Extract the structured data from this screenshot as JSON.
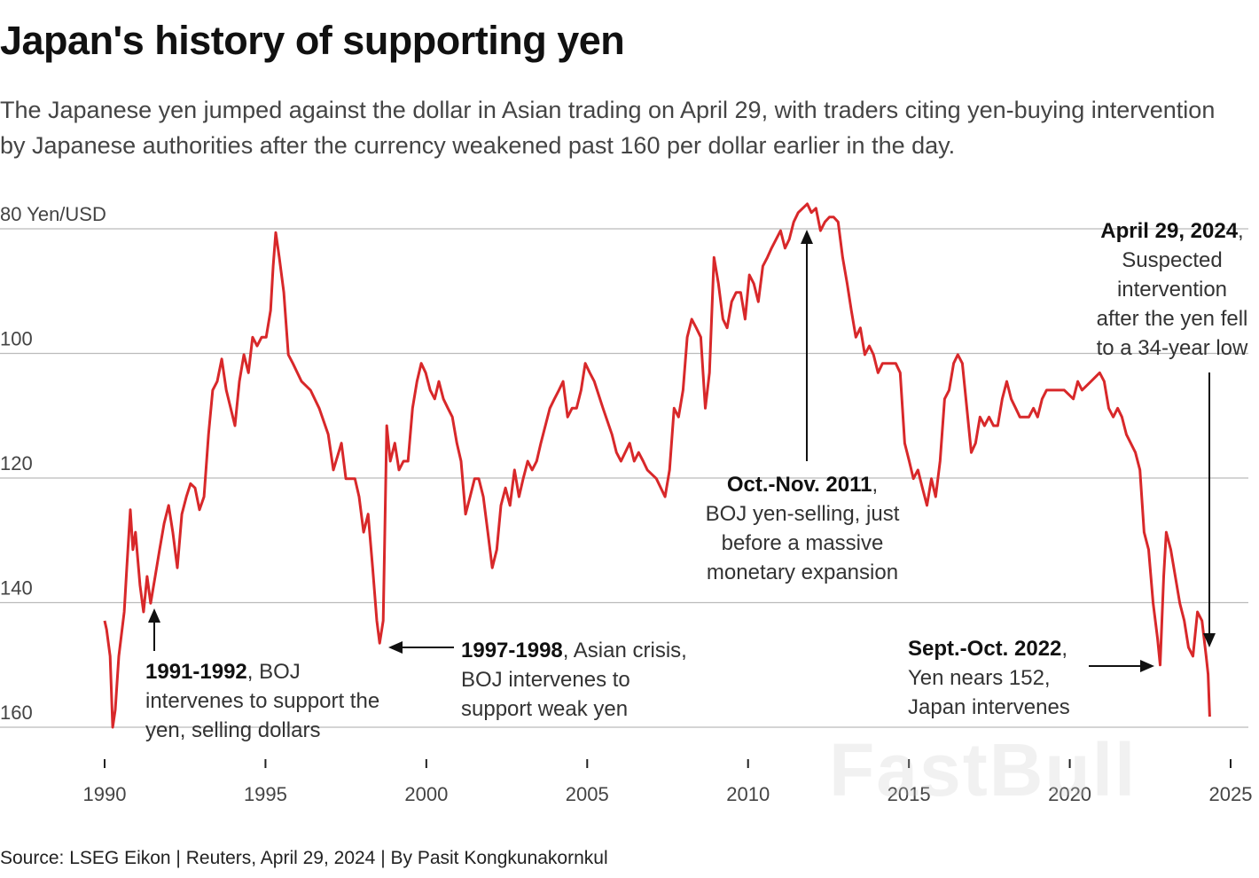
{
  "title": "Japan's history of supporting yen",
  "subtitle": "The Japanese yen jumped against the dollar in Asian trading on April 29, with traders citing yen-buying intervention by Japanese authorities after the currency weakened past 160 per dollar earlier in the day.",
  "source": "Source: LSEG Eikon | Reuters, April 29, 2024 | By Pasit Kongkunakornkul",
  "watermark": "FastBull",
  "colors": {
    "line": "#d8282a",
    "grid": "#bbbbbb",
    "annotation_arrow": "#111111"
  },
  "annotations": [
    {
      "bold": "1991-1992",
      "text": ", BOJ",
      "lines": [
        "intervenes to support the",
        "yen, selling dollars"
      ]
    },
    {
      "bold": "1997-1998",
      "text": ", Asian crisis,",
      "lines": [
        "BOJ intervenes to",
        "support weak yen"
      ]
    },
    {
      "bold": "Oct.-Nov. 2011",
      "text": ",",
      "lines": [
        "BOJ yen-selling, just",
        "before a massive",
        "monetary expansion"
      ]
    },
    {
      "bold": "Sept.-Oct. 2022",
      "text": ",",
      "lines": [
        "Yen nears 152,",
        "Japan intervenes"
      ]
    },
    {
      "bold": "April 29, 2024",
      "text": ",",
      "lines": [
        "Suspected",
        "intervention",
        "after the yen fell",
        "to a 34-year low"
      ]
    }
  ],
  "chart_data": {
    "type": "line",
    "title": "Japan's history of supporting yen",
    "ylabel": "Yen/USD",
    "y_unit_label": "80 Yen/USD",
    "y_inverted": true,
    "ylim": [
      80,
      160
    ],
    "xlim": [
      1990,
      2025
    ],
    "yticks": [
      80,
      100,
      120,
      140,
      160
    ],
    "ytick_labels": [
      "80 Yen/USD",
      "100",
      "120",
      "140",
      "160"
    ],
    "xticks": [
      1990,
      1995,
      2000,
      2005,
      2010,
      2015,
      2020,
      2025
    ],
    "xtick_labels": [
      "1990",
      "1995",
      "2000",
      "2005",
      "2010",
      "2015",
      "2020",
      "2025"
    ],
    "grid": "horizontal",
    "series": [
      {
        "x": [
          1990.0,
          1990.06,
          1990.17,
          1990.25,
          1990.33,
          1990.44,
          1990.61,
          1990.69,
          1990.8,
          1990.88,
          1990.96,
          1991.1,
          1991.21,
          1991.32,
          1991.43,
          1991.57,
          1991.71,
          1991.85,
          1991.99,
          1992.12,
          1992.26,
          1992.4,
          1992.54,
          1992.67,
          1992.81,
          1992.95,
          1993.09,
          1993.23,
          1993.36,
          1993.5,
          1993.64,
          1993.78,
          1993.92,
          1994.05,
          1994.19,
          1994.33,
          1994.47,
          1994.6,
          1994.74,
          1994.88,
          1995.02,
          1995.16,
          1995.24,
          1995.32,
          1995.43,
          1995.57,
          1995.71,
          1995.85,
          1996.12,
          1996.4,
          1996.67,
          1996.95,
          1997.11,
          1997.36,
          1997.5,
          1997.78,
          1997.91,
          1998.05,
          1998.19,
          1998.33,
          1998.46,
          1998.55,
          1998.66,
          1998.77,
          1998.88,
          1999.02,
          1999.15,
          1999.29,
          1999.43,
          1999.57,
          1999.71,
          1999.84,
          1999.98,
          2000.12,
          2000.26,
          2000.39,
          2000.53,
          2000.67,
          2000.81,
          2000.95,
          2001.08,
          2001.22,
          2001.36,
          2001.5,
          2001.63,
          2001.77,
          2001.91,
          2002.05,
          2002.19,
          2002.32,
          2002.46,
          2002.6,
          2002.74,
          2002.88,
          2003.01,
          2003.15,
          2003.29,
          2003.43,
          2003.56,
          2003.7,
          2003.84,
          2003.98,
          2004.12,
          2004.25,
          2004.39,
          2004.53,
          2004.67,
          2004.81,
          2004.94,
          2005.08,
          2005.22,
          2005.49,
          2005.77,
          2005.91,
          2006.05,
          2006.32,
          2006.46,
          2006.6,
          2006.74,
          2006.87,
          2007.15,
          2007.42,
          2007.56,
          2007.7,
          2007.84,
          2007.98,
          2008.11,
          2008.25,
          2008.39,
          2008.53,
          2008.67,
          2008.8,
          2008.94,
          2009.08,
          2009.22,
          2009.35,
          2009.49,
          2009.63,
          2009.77,
          2009.91,
          2010.04,
          2010.18,
          2010.32,
          2010.46,
          2010.6,
          2010.73,
          2010.87,
          2011.01,
          2011.15,
          2011.28,
          2011.42,
          2011.56,
          2011.7,
          2011.84,
          2011.97,
          2012.11,
          2012.25,
          2012.39,
          2012.53,
          2012.66,
          2012.8,
          2012.94,
          2013.08,
          2013.21,
          2013.35,
          2013.49,
          2013.63,
          2013.77,
          2013.9,
          2014.04,
          2014.18,
          2014.46,
          2014.59,
          2014.73,
          2014.87,
          2015.01,
          2015.14,
          2015.28,
          2015.42,
          2015.56,
          2015.7,
          2015.83,
          2015.97,
          2016.11,
          2016.25,
          2016.39,
          2016.52,
          2016.66,
          2016.8,
          2016.94,
          2017.07,
          2017.21,
          2017.35,
          2017.49,
          2017.63,
          2017.76,
          2017.9,
          2018.04,
          2018.18,
          2018.32,
          2018.45,
          2018.59,
          2018.73,
          2018.87,
          2019.0,
          2019.14,
          2019.28,
          2019.56,
          2019.83,
          2020.11,
          2020.25,
          2020.38,
          2020.66,
          2020.93,
          2021.07,
          2021.21,
          2021.35,
          2021.49,
          2021.62,
          2021.76,
          2022.04,
          2022.18,
          2022.31,
          2022.45,
          2022.59,
          2022.73,
          2022.81,
          2022.92,
          2023.0,
          2023.14,
          2023.28,
          2023.42,
          2023.56,
          2023.69,
          2023.83,
          2023.97,
          2024.11,
          2024.24,
          2024.3,
          2024.35
        ],
        "y": [
          142.9,
          144.3,
          148.6,
          160.0,
          157.2,
          148.6,
          141.5,
          134.4,
          125.1,
          131.5,
          128.7,
          137.2,
          141.5,
          135.8,
          140.1,
          135.8,
          131.5,
          127.3,
          124.4,
          128.7,
          134.4,
          125.8,
          123.0,
          120.9,
          121.6,
          125.1,
          123.0,
          113.0,
          105.9,
          104.5,
          100.9,
          105.9,
          108.8,
          111.6,
          104.5,
          100.2,
          103.1,
          97.4,
          98.8,
          97.4,
          97.4,
          93.1,
          86.0,
          80.6,
          84.6,
          90.2,
          100.2,
          101.6,
          104.5,
          105.9,
          108.8,
          113.0,
          118.7,
          114.4,
          120.1,
          120.1,
          123.0,
          128.7,
          125.8,
          134.4,
          142.9,
          146.5,
          142.9,
          111.6,
          117.3,
          114.4,
          118.7,
          117.3,
          117.3,
          108.8,
          104.5,
          101.6,
          103.1,
          105.9,
          107.3,
          104.5,
          107.3,
          108.8,
          110.2,
          114.4,
          117.3,
          125.8,
          123.0,
          120.1,
          120.1,
          123.0,
          128.7,
          134.4,
          131.5,
          124.4,
          121.6,
          124.4,
          118.7,
          123.0,
          120.1,
          117.3,
          118.7,
          117.3,
          114.4,
          111.6,
          108.8,
          107.3,
          105.9,
          104.5,
          110.2,
          108.8,
          108.8,
          105.9,
          101.6,
          103.1,
          104.5,
          108.8,
          113.0,
          115.9,
          117.3,
          114.4,
          117.3,
          115.9,
          117.3,
          118.7,
          120.1,
          123.0,
          118.7,
          108.8,
          110.2,
          105.9,
          97.4,
          94.5,
          95.9,
          97.4,
          108.8,
          103.1,
          84.6,
          88.8,
          94.5,
          95.9,
          91.7,
          90.2,
          90.2,
          94.5,
          87.4,
          88.8,
          91.7,
          86.0,
          84.6,
          83.1,
          81.7,
          80.3,
          83.1,
          81.7,
          78.9,
          77.4,
          76.7,
          76.0,
          77.4,
          76.7,
          80.3,
          78.9,
          78.1,
          78.1,
          78.9,
          84.6,
          88.8,
          93.1,
          97.4,
          95.9,
          100.2,
          98.8,
          100.2,
          103.1,
          101.6,
          101.6,
          101.6,
          103.1,
          114.4,
          117.3,
          120.1,
          118.7,
          121.6,
          124.4,
          120.1,
          123.0,
          117.3,
          107.3,
          105.9,
          101.6,
          100.2,
          101.6,
          108.8,
          115.9,
          114.4,
          110.2,
          111.6,
          110.2,
          111.6,
          111.6,
          107.3,
          104.5,
          107.3,
          108.8,
          110.2,
          110.2,
          110.2,
          108.8,
          110.2,
          107.3,
          105.9,
          105.9,
          105.9,
          107.3,
          104.5,
          105.9,
          104.5,
          103.1,
          104.5,
          108.8,
          110.2,
          108.8,
          110.2,
          113.0,
          115.9,
          118.7,
          128.7,
          131.5,
          140.1,
          145.8,
          150.0,
          135.8,
          128.7,
          131.5,
          135.8,
          140.1,
          142.9,
          147.2,
          148.6,
          141.5,
          142.9,
          148.6,
          151.5,
          158.3
        ]
      }
    ]
  }
}
